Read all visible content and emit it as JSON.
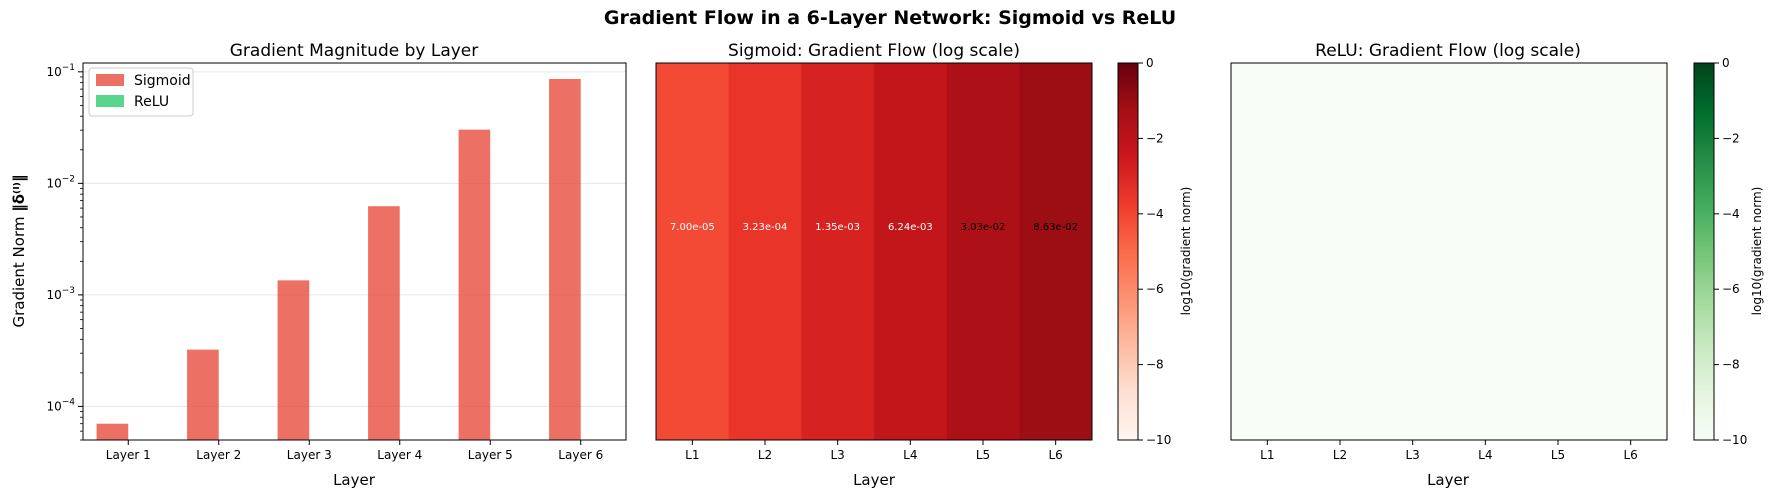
{
  "figure": {
    "title": "Gradient Flow in a 6-Layer Network: Sigmoid vs ReLU"
  },
  "chart_data": [
    {
      "type": "bar",
      "title": "Gradient Magnitude by Layer",
      "xlabel": "Layer",
      "ylabel_prefix": "Gradient Norm",
      "ylabel_symbol": "‖δ⁽ˡ⁾‖",
      "yscale": "log",
      "ylim": [
        5e-05,
        0.12
      ],
      "categories": [
        "Layer 1",
        "Layer 2",
        "Layer 3",
        "Layer 4",
        "Layer 5",
        "Layer 6"
      ],
      "yticks": [
        {
          "value": 0.0001,
          "base": "10",
          "exp": "−4"
        },
        {
          "value": 0.001,
          "base": "10",
          "exp": "−3"
        },
        {
          "value": 0.01,
          "base": "10",
          "exp": "−2"
        },
        {
          "value": 0.1,
          "base": "10",
          "exp": "−1"
        }
      ],
      "legend": {
        "position": "top-left"
      },
      "grid": "y",
      "series": [
        {
          "name": "Sigmoid",
          "color": "#e74c3c",
          "values": [
            7e-05,
            0.000323,
            0.00135,
            0.00624,
            0.0303,
            0.0863
          ]
        },
        {
          "name": "ReLU",
          "color": "#2ecc71",
          "values": [
            0,
            0,
            0,
            0,
            0,
            0
          ]
        }
      ]
    },
    {
      "type": "heatmap",
      "title": "Sigmoid: Gradient Flow (log scale)",
      "xlabel": "Layer",
      "categories": [
        "L1",
        "L2",
        "L3",
        "L4",
        "L5",
        "L6"
      ],
      "values": [
        7e-05,
        0.000323,
        0.00135,
        0.00624,
        0.0303,
        0.0863
      ],
      "labels": [
        "7.00e-05",
        "3.23e-04",
        "1.35e-03",
        "6.24e-03",
        "3.03e-02",
        "8.63e-02"
      ],
      "colormap": "Reds",
      "colorbar": {
        "label": "log10(gradient norm)",
        "range": [
          -10,
          0
        ],
        "ticks": [
          "0",
          "−2",
          "−4",
          "−6",
          "−8",
          "−10"
        ]
      }
    },
    {
      "type": "heatmap",
      "title": "ReLU: Gradient Flow (log scale)",
      "xlabel": "Layer",
      "categories": [
        "L1",
        "L2",
        "L3",
        "L4",
        "L5",
        "L6"
      ],
      "colormap": "Greens",
      "colorbar": {
        "label": "log10(gradient norm)",
        "range": [
          -10,
          0
        ],
        "ticks": [
          "0",
          "−2",
          "−4",
          "−6",
          "−8",
          "−10"
        ]
      }
    }
  ]
}
